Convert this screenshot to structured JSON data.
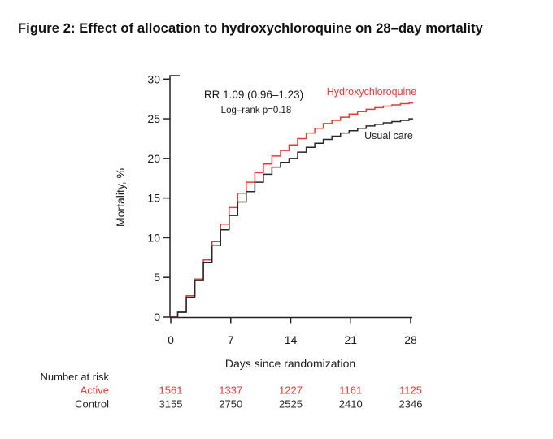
{
  "title": "Figure 2: Effect of allocation to hydroxychloroquine on 28–day mortality",
  "chart_data": {
    "type": "line",
    "step": true,
    "title": "",
    "xlabel": "Days since randomization",
    "ylabel": "Mortality, %",
    "xlim": [
      0,
      28
    ],
    "ylim": [
      0,
      30
    ],
    "xticks": [
      0,
      7,
      14,
      21,
      28
    ],
    "yticks": [
      0,
      5,
      10,
      15,
      20,
      25,
      30
    ],
    "grid": false,
    "legend_position": "labels-at-line-end",
    "annotations": [
      {
        "id": "rr",
        "text": "RR 1.09 (0.96–1.23)"
      },
      {
        "id": "logrank",
        "text": "Log–rank p=0.18"
      }
    ],
    "x_days": [
      0,
      1,
      2,
      3,
      4,
      5,
      6,
      7,
      8,
      9,
      10,
      11,
      12,
      13,
      14,
      15,
      16,
      17,
      18,
      19,
      20,
      21,
      22,
      23,
      24,
      25,
      26,
      27,
      28
    ],
    "series": [
      {
        "name": "Hydroxychloroquine",
        "color": "#e13b3b",
        "values": [
          0,
          0.7,
          2.7,
          4.8,
          7.2,
          9.5,
          11.7,
          13.8,
          15.6,
          17.0,
          18.2,
          19.3,
          20.3,
          21.0,
          21.7,
          22.5,
          23.2,
          23.8,
          24.4,
          24.8,
          25.2,
          25.6,
          25.9,
          26.2,
          26.4,
          26.6,
          26.75,
          26.9,
          27.0
        ]
      },
      {
        "name": "Usual care",
        "color": "#262626",
        "values": [
          0,
          0.6,
          2.5,
          4.6,
          6.9,
          9.0,
          11.0,
          12.8,
          14.5,
          15.8,
          17.0,
          18.0,
          18.9,
          19.5,
          20.0,
          20.8,
          21.4,
          21.9,
          22.4,
          22.8,
          23.2,
          23.5,
          23.8,
          24.1,
          24.3,
          24.5,
          24.65,
          24.8,
          25.0
        ]
      }
    ]
  },
  "risk_table": {
    "header": "Number at risk",
    "days": [
      0,
      7,
      14,
      21,
      28
    ],
    "rows": [
      {
        "label": "Active",
        "color": "#e13b3b",
        "values": [
          "1561",
          "1337",
          "1227",
          "1161",
          "1125"
        ]
      },
      {
        "label": "Control",
        "color": "#262626",
        "values": [
          "3155",
          "2750",
          "2525",
          "2410",
          "2346"
        ]
      }
    ]
  },
  "colors": {
    "accent_red": "#e13b3b",
    "curve_black": "#262626",
    "text": "#1a1a1a"
  }
}
